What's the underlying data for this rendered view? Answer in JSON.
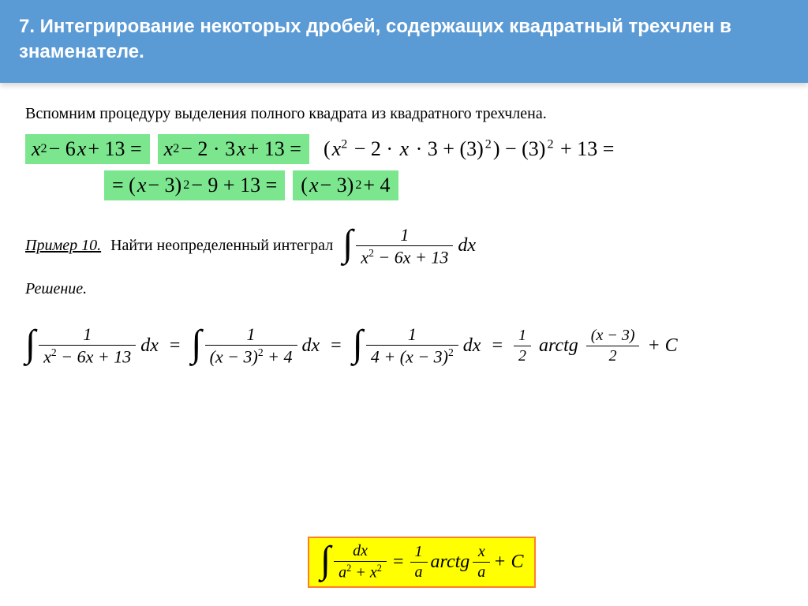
{
  "colors": {
    "header_bg": "#5b9bd5",
    "header_text": "#ffffff",
    "highlight_green": "#7ce68f",
    "highlight_yellow": "#ffff00",
    "highlight_border": "#ff7f27",
    "page_bg": "#ffffff",
    "text": "#000000"
  },
  "typography": {
    "header_family": "Arial, sans-serif",
    "body_family": "Times New Roman, serif",
    "header_size_pt": 18,
    "body_size_pt": 15,
    "math_size_pt": 20
  },
  "header": {
    "title": "7. Интегрирование некоторых дробей, содержащих квадратный   трехчлен в знаменателе."
  },
  "intro": "Вспомним процедуру выделения полного квадрата из квадратного трехчлена.",
  "derivation": {
    "line1": {
      "seg1": "x² − 6x + 13 =",
      "seg2": "x² − 2 · 3 x + 13 =",
      "seg3": "(x² − 2 · x · 3 + (3)²) − (3)² + 13 ="
    },
    "line2": {
      "seg1": "= (x − 3)² − 9 + 13 =",
      "seg2": "(x − 3)² + 4"
    }
  },
  "example": {
    "label": "Пример 10.",
    "text": "Найти неопределенный интеграл",
    "integral": {
      "num": "1",
      "den": "x² − 6x + 13",
      "dx": "dx"
    }
  },
  "solution_label": "Решение.",
  "solution_chain": {
    "step1": {
      "num": "1",
      "den": "x² − 6x + 13"
    },
    "step2": {
      "num": "1",
      "den": "(x − 3)² + 4"
    },
    "step3": {
      "num": "1",
      "den": "4 + (x − 3)²"
    },
    "coef": {
      "num": "1",
      "den": "2"
    },
    "arctg_label": "arctg",
    "arctg_arg": {
      "num": "(x − 3)",
      "den": "2"
    },
    "plus_c": " + C",
    "dx": "dx",
    "eq": "="
  },
  "formula": {
    "lhs": {
      "num": "dx",
      "den": "a² + x²"
    },
    "eq": "=",
    "coef": {
      "num": "1",
      "den": "a"
    },
    "arctg_label": "arctg",
    "arg": {
      "num": "x",
      "den": "a"
    },
    "plus_c": " + C"
  }
}
